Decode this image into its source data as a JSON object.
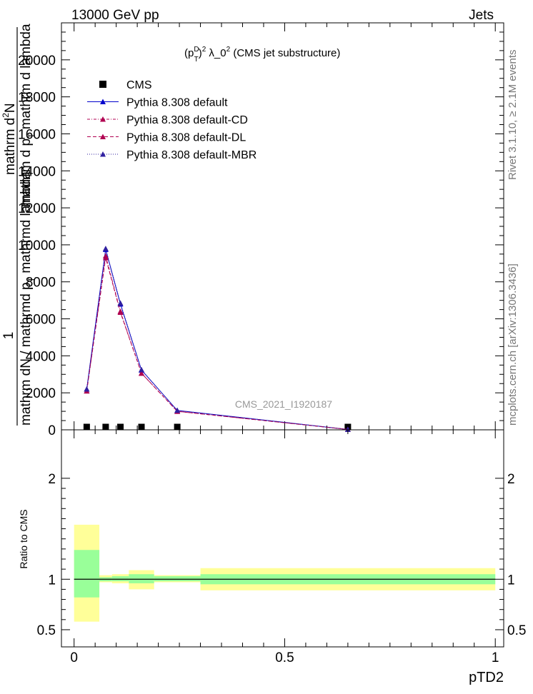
{
  "header": {
    "left": "13000 GeV pp",
    "right": "Jets"
  },
  "title": {
    "prefix": "(p",
    "sup_d": "D",
    "sub_t": "T",
    "close": ")",
    "sup_2": "2",
    "mid": " λ_0",
    "sup_2b": "2",
    "suffix": " (CMS jet substructure)"
  },
  "side_labels": {
    "rivet": "Rivet 3.1.10, ≥ 2.1M events",
    "mcplots": "mcplots.cern.ch [arXiv:1306.3436]"
  },
  "analysis_tag": "CMS_2021_I1920187",
  "ylabel_top": {
    "line1": "mathrm d",
    "line1_sup": "2",
    "line1_tail": "N",
    "line2": "mathrm d p",
    "line2_sub": "T",
    "line2_tail": " mathrm d lambda",
    "numerator": "1",
    "denominator": "mathrm dN / mathrmd p",
    "denominator_sub": "T",
    "denominator_tail": " mathrmd lambda"
  },
  "ylabel_bottom": "Ratio to CMS",
  "xlabel": "pTD2",
  "legend": [
    {
      "label": "CMS",
      "color": "#000000",
      "marker": "square",
      "dash": ""
    },
    {
      "label": "Pythia 8.308 default",
      "color": "#0000cc",
      "marker": "triangle",
      "dash": ""
    },
    {
      "label": "Pythia 8.308 default-CD",
      "color": "#b00050",
      "marker": "triangle",
      "dash": "4,2,1,2"
    },
    {
      "label": "Pythia 8.308 default-DL",
      "color": "#b00050",
      "marker": "triangle",
      "dash": "5,3"
    },
    {
      "label": "Pythia 8.308 default-MBR",
      "color": "#3020a0",
      "marker": "triangle",
      "dash": "1,2"
    }
  ],
  "chart_data": {
    "type": "line",
    "main": {
      "xlim": [
        -0.03,
        1.02
      ],
      "ylim": [
        0,
        22000
      ],
      "yticks": [
        0,
        2000,
        4000,
        6000,
        8000,
        10000,
        12000,
        14000,
        16000,
        18000,
        20000
      ],
      "ytick_labels": [
        "0",
        "2000",
        "4000",
        "6000",
        "8000",
        "10000",
        "12000",
        "14000",
        "16000",
        "18000",
        "20000"
      ],
      "bins": [
        [
          0.0,
          0.06
        ],
        [
          0.06,
          0.09
        ],
        [
          0.09,
          0.13
        ],
        [
          0.13,
          0.19
        ],
        [
          0.19,
          0.3
        ],
        [
          0.3,
          1.0
        ]
      ],
      "x": [
        0.03,
        0.075,
        0.11,
        0.16,
        0.245,
        0.65
      ],
      "series": [
        {
          "name": "CMS",
          "values": [
            0.6,
            1.6,
            1.05,
            0.5,
            0.38,
            0.07
          ]
        },
        {
          "name": "Pythia 8.308 default",
          "values": [
            2200,
            9750,
            6800,
            3230,
            1050,
            20
          ]
        },
        {
          "name": "Pythia 8.308 default-CD",
          "values": [
            2100,
            9400,
            6400,
            3060,
            1000,
            20
          ]
        },
        {
          "name": "Pythia 8.308 default-DL",
          "values": [
            2100,
            9300,
            6350,
            3060,
            1000,
            20
          ]
        },
        {
          "name": "Pythia 8.308 default-MBR",
          "values": [
            2200,
            9800,
            6850,
            3250,
            1050,
            20
          ]
        }
      ]
    },
    "ratio": {
      "xlim": [
        -0.03,
        1.02
      ],
      "ylim": [
        0.33,
        2.48
      ],
      "yticks": [
        0.5,
        1,
        2
      ],
      "ytick_labels": [
        "0.5",
        "1",
        "2"
      ],
      "xticks": [
        0,
        0.5,
        1
      ],
      "xtick_labels": [
        "0",
        "0.5",
        "1"
      ],
      "bands": [
        {
          "x": [
            0.0,
            0.06
          ],
          "stat": [
            0.82,
            1.29
          ],
          "total": [
            0.58,
            1.54
          ]
        },
        {
          "x": [
            0.06,
            0.09
          ],
          "stat": [
            0.98,
            1.02
          ],
          "total": [
            0.97,
            1.04
          ]
        },
        {
          "x": [
            0.09,
            0.13
          ],
          "stat": [
            0.98,
            1.03
          ],
          "total": [
            0.96,
            1.05
          ]
        },
        {
          "x": [
            0.13,
            0.19
          ],
          "stat": [
            0.96,
            1.05
          ],
          "total": [
            0.9,
            1.09
          ]
        },
        {
          "x": [
            0.19,
            0.3
          ],
          "stat": [
            0.98,
            1.03
          ],
          "total": [
            0.97,
            1.04
          ]
        },
        {
          "x": [
            0.3,
            1.0
          ],
          "stat": [
            0.95,
            1.05
          ],
          "total": [
            0.89,
            1.11
          ]
        }
      ]
    },
    "colors": {
      "stat": "#99ff99",
      "total": "#ffff99"
    }
  }
}
